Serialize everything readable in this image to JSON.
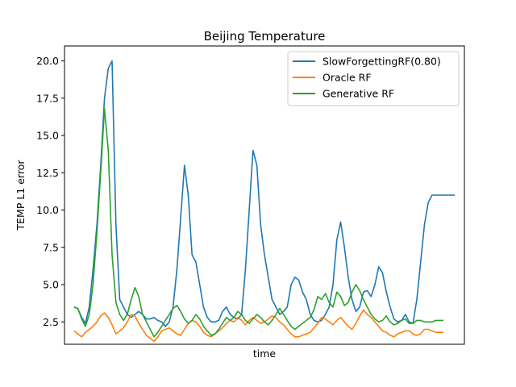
{
  "chart_data": {
    "type": "line",
    "title": "Beijing Temperature",
    "xlabel": "time",
    "ylabel": "TEMP L1 error",
    "ylim": [
      1.0,
      21.0
    ],
    "xlim": [
      -5,
      205
    ],
    "yticks": [
      2.5,
      5.0,
      7.5,
      10.0,
      12.5,
      15.0,
      17.5,
      20.0
    ],
    "ytick_labels": [
      "2.5",
      "5.0",
      "7.5",
      "10.0",
      "12.5",
      "15.0",
      "17.5",
      "20.0"
    ],
    "grid": false,
    "legend_position": "top-right",
    "series": [
      {
        "name": "SlowForgettingRF(0.80)",
        "color": "#1f77b4",
        "x": [
          0,
          2,
          4,
          6,
          8,
          10,
          12,
          14,
          16,
          18,
          20,
          22,
          24,
          26,
          28,
          30,
          32,
          34,
          36,
          38,
          40,
          42,
          44,
          46,
          48,
          50,
          52,
          54,
          56,
          58,
          60,
          62,
          64,
          66,
          68,
          70,
          72,
          74,
          76,
          78,
          80,
          82,
          84,
          86,
          88,
          90,
          92,
          94,
          96,
          98,
          100,
          102,
          104,
          106,
          108,
          110,
          112,
          114,
          116,
          118,
          120,
          122,
          124,
          126,
          128,
          130,
          132,
          134,
          136,
          138,
          140,
          142,
          144,
          146,
          148,
          150,
          152,
          154,
          156,
          158,
          160,
          162,
          164,
          166,
          168,
          170,
          172,
          174,
          176,
          178,
          180,
          182,
          184,
          186,
          188,
          190,
          192,
          194,
          196,
          198,
          200
        ],
        "y": [
          3.5,
          3.4,
          2.8,
          2.4,
          3.5,
          6.0,
          9.0,
          13.0,
          17.5,
          19.5,
          20.0,
          9.0,
          4.0,
          3.5,
          3.0,
          2.8,
          3.0,
          3.2,
          3.0,
          2.7,
          2.7,
          2.8,
          2.6,
          2.5,
          2.2,
          2.5,
          3.5,
          6.0,
          9.5,
          13.0,
          11.0,
          7.0,
          6.5,
          5.0,
          3.5,
          2.8,
          2.5,
          2.5,
          2.6,
          3.2,
          3.5,
          3.0,
          2.8,
          2.7,
          3.0,
          6.0,
          10.0,
          14.0,
          13.0,
          9.0,
          7.0,
          5.5,
          4.0,
          3.5,
          3.0,
          3.2,
          3.5,
          5.0,
          5.5,
          5.3,
          4.5,
          4.0,
          3.0,
          2.6,
          2.5,
          2.6,
          3.0,
          3.5,
          5.0,
          8.0,
          9.2,
          7.5,
          5.5,
          4.0,
          3.2,
          3.5,
          4.5,
          4.6,
          4.2,
          5.0,
          6.2,
          5.8,
          4.5,
          3.5,
          2.7,
          2.5,
          2.6,
          3.0,
          2.5,
          2.4,
          4.0,
          6.5,
          9.0,
          10.5,
          11.0,
          11.0,
          11.0,
          11.0,
          11.0,
          11.0,
          11.0
        ]
      },
      {
        "name": "Oracle RF",
        "color": "#ff7f0e",
        "x": [
          0,
          2,
          4,
          6,
          8,
          10,
          12,
          14,
          16,
          18,
          20,
          22,
          24,
          26,
          28,
          30,
          32,
          34,
          36,
          38,
          40,
          42,
          44,
          46,
          48,
          50,
          52,
          54,
          56,
          58,
          60,
          62,
          64,
          66,
          68,
          70,
          72,
          74,
          76,
          78,
          80,
          82,
          84,
          86,
          88,
          90,
          92,
          94,
          96,
          98,
          100,
          102,
          104,
          106,
          108,
          110,
          112,
          114,
          116,
          118,
          120,
          122,
          124,
          126,
          128,
          130,
          132,
          134,
          136,
          138,
          140,
          142,
          144,
          146,
          148,
          150,
          152,
          154,
          156,
          158,
          160,
          162,
          164,
          166,
          168,
          170,
          172,
          174,
          176,
          178,
          180,
          182,
          184,
          186,
          188,
          190,
          192,
          194
        ],
        "y": [
          1.9,
          1.7,
          1.5,
          1.8,
          2.0,
          2.2,
          2.5,
          2.9,
          3.1,
          2.8,
          2.3,
          1.7,
          1.9,
          2.1,
          2.5,
          3.0,
          2.9,
          2.4,
          2.0,
          1.6,
          1.4,
          1.2,
          1.5,
          1.9,
          2.0,
          2.1,
          1.9,
          1.7,
          1.6,
          2.0,
          2.4,
          2.6,
          2.5,
          2.2,
          1.8,
          1.6,
          1.5,
          1.7,
          1.9,
          2.1,
          2.4,
          2.6,
          2.5,
          2.8,
          2.6,
          2.3,
          2.6,
          2.8,
          2.6,
          2.4,
          2.5,
          2.7,
          2.9,
          2.8,
          2.5,
          2.3,
          2.0,
          1.7,
          1.5,
          1.5,
          1.6,
          1.7,
          1.8,
          2.1,
          2.4,
          2.8,
          2.7,
          2.5,
          2.3,
          2.6,
          2.8,
          2.5,
          2.2,
          2.0,
          2.4,
          2.9,
          3.3,
          3.0,
          2.8,
          2.5,
          2.2,
          1.9,
          1.8,
          1.6,
          1.5,
          1.7,
          1.8,
          1.9,
          1.9,
          1.7,
          1.6,
          1.7,
          2.0,
          2.0,
          1.9,
          1.8,
          1.8,
          1.8
        ]
      },
      {
        "name": "Generative RF",
        "color": "#2ca02c",
        "x": [
          0,
          2,
          4,
          6,
          8,
          10,
          12,
          14,
          16,
          18,
          20,
          22,
          24,
          26,
          28,
          30,
          32,
          34,
          36,
          38,
          40,
          42,
          44,
          46,
          48,
          50,
          52,
          54,
          56,
          58,
          60,
          62,
          64,
          66,
          68,
          70,
          72,
          74,
          76,
          78,
          80,
          82,
          84,
          86,
          88,
          90,
          92,
          94,
          96,
          98,
          100,
          102,
          104,
          106,
          108,
          110,
          112,
          114,
          116,
          118,
          120,
          122,
          124,
          126,
          128,
          130,
          132,
          134,
          136,
          138,
          140,
          142,
          144,
          146,
          148,
          150,
          152,
          154,
          156,
          158,
          160,
          162,
          164,
          166,
          168,
          170,
          172,
          174,
          176,
          178,
          180,
          182,
          184,
          186,
          188,
          190,
          192,
          194
        ],
        "y": [
          3.5,
          3.4,
          2.7,
          2.2,
          3.0,
          5.0,
          8.5,
          12.5,
          16.8,
          14.0,
          7.0,
          3.8,
          3.0,
          2.6,
          3.0,
          4.0,
          4.8,
          4.2,
          3.0,
          2.5,
          2.0,
          1.5,
          1.8,
          2.2,
          2.6,
          3.0,
          3.4,
          3.6,
          3.2,
          2.7,
          2.4,
          2.6,
          3.0,
          2.7,
          2.2,
          1.9,
          1.6,
          1.7,
          2.0,
          2.4,
          2.8,
          2.6,
          2.8,
          3.2,
          3.0,
          2.6,
          2.4,
          2.7,
          3.0,
          2.8,
          2.5,
          2.3,
          2.6,
          3.0,
          3.4,
          3.0,
          2.6,
          2.2,
          2.0,
          2.2,
          2.4,
          2.6,
          2.8,
          3.3,
          4.2,
          4.0,
          4.4,
          3.8,
          3.5,
          4.5,
          4.2,
          3.6,
          3.8,
          4.5,
          5.0,
          4.6,
          4.0,
          3.5,
          3.0,
          2.7,
          2.5,
          2.6,
          2.9,
          2.5,
          2.3,
          2.4,
          2.6,
          2.7,
          2.4,
          2.4,
          2.6,
          2.6,
          2.5,
          2.5,
          2.5,
          2.6,
          2.6,
          2.6
        ]
      }
    ]
  }
}
